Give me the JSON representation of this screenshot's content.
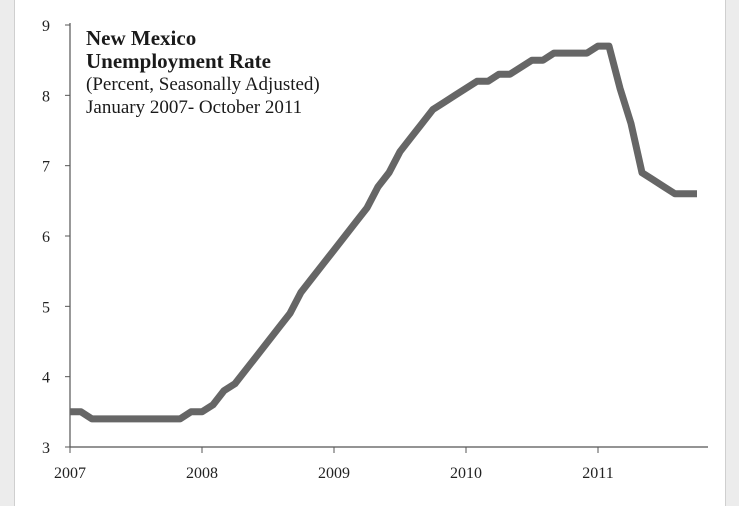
{
  "chart_data": {
    "type": "line",
    "title": "New Mexico",
    "title_line2": "Unemployment Rate",
    "subtitle": "(Percent, Seasonally Adjusted)",
    "date_range": "January 2007- October 2011",
    "xlabel": "",
    "ylabel": "",
    "ylim": [
      3,
      9
    ],
    "yticks": [
      "3",
      "4",
      "5",
      "6",
      "7",
      "8",
      "9"
    ],
    "xticks": [
      "2007",
      "2008",
      "2009",
      "2010",
      "2011"
    ],
    "xlim": [
      "2007-01",
      "2011-11"
    ],
    "grid": false,
    "line_color": "#666666",
    "series": [
      {
        "x": [
          "2007-01",
          "2007-02",
          "2007-03",
          "2007-04",
          "2007-05",
          "2007-06",
          "2007-07",
          "2007-08",
          "2007-09",
          "2007-10",
          "2007-11",
          "2007-12",
          "2008-01",
          "2008-02",
          "2008-03",
          "2008-04",
          "2008-05",
          "2008-06",
          "2008-07",
          "2008-08",
          "2008-09",
          "2008-10",
          "2008-11",
          "2008-12",
          "2009-01",
          "2009-02",
          "2009-03",
          "2009-04",
          "2009-05",
          "2009-06",
          "2009-07",
          "2009-08",
          "2009-09",
          "2009-10",
          "2009-11",
          "2009-12",
          "2010-01",
          "2010-02",
          "2010-03",
          "2010-04",
          "2010-05",
          "2010-06",
          "2010-07",
          "2010-08",
          "2010-09",
          "2010-10",
          "2010-11",
          "2010-12",
          "2011-01",
          "2011-02",
          "2011-03",
          "2011-04",
          "2011-05",
          "2011-06",
          "2011-07",
          "2011-08",
          "2011-09",
          "2011-10"
        ],
        "values": [
          3.5,
          3.5,
          3.4,
          3.4,
          3.4,
          3.4,
          3.4,
          3.4,
          3.4,
          3.4,
          3.4,
          3.5,
          3.5,
          3.6,
          3.8,
          3.9,
          4.1,
          4.3,
          4.5,
          4.7,
          4.9,
          5.2,
          5.4,
          5.6,
          5.8,
          6.0,
          6.2,
          6.4,
          6.7,
          6.9,
          7.2,
          7.4,
          7.6,
          7.8,
          7.9,
          8.0,
          8.1,
          8.2,
          8.2,
          8.3,
          8.3,
          8.4,
          8.5,
          8.5,
          8.6,
          8.6,
          8.6,
          8.6,
          8.7,
          8.7,
          8.1,
          7.6,
          6.9,
          6.8,
          6.7,
          6.6,
          6.6,
          6.6
        ]
      }
    ]
  }
}
